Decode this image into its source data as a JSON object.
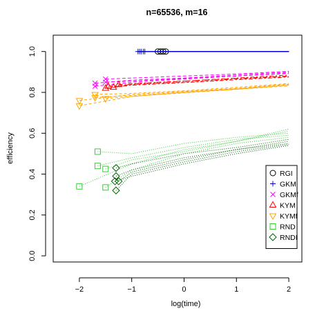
{
  "chart_data": {
    "type": "line",
    "title": "n=65536, m=16",
    "xlabel": "log(time)",
    "ylabel": "efficiency",
    "xlim": [
      -2.5,
      2.25
    ],
    "ylim": [
      -0.03,
      1.08
    ],
    "x_ticks": [
      -2,
      -1,
      0,
      1,
      2
    ],
    "x_tick_labels": [
      "−2",
      "−1",
      "0",
      "1",
      "2"
    ],
    "y_ticks": [
      0.0,
      0.2,
      0.4,
      0.6,
      0.8,
      1.0
    ],
    "y_tick_labels": [
      "0.0",
      "0.2",
      "0.4",
      "0.6",
      "0.8",
      "1.0"
    ],
    "grid": false,
    "legend_position": "right",
    "series": [
      {
        "name": "RGI",
        "color": "#000000",
        "marker": "circle",
        "dash": "none",
        "runs": [
          [
            [
              -0.5,
              1.0
            ],
            [
              2.0,
              1.0
            ]
          ],
          [
            [
              -0.45,
              1.0
            ],
            [
              2.0,
              1.0
            ]
          ],
          [
            [
              -0.4,
              1.0
            ],
            [
              2.0,
              1.0
            ]
          ],
          [
            [
              -0.35,
              1.0
            ],
            [
              2.0,
              1.0
            ]
          ]
        ]
      },
      {
        "name": "GKM",
        "color": "#0000cc",
        "marker": "plus",
        "dash": "none",
        "runs": [
          [
            [
              -0.88,
              1.0
            ],
            [
              2.0,
              1.0
            ]
          ],
          [
            [
              -0.85,
              1.0
            ],
            [
              2.0,
              1.0
            ]
          ],
          [
            [
              -0.82,
              1.0
            ],
            [
              2.0,
              1.0
            ]
          ],
          [
            [
              -0.78,
              1.0
            ],
            [
              2.0,
              1.0
            ]
          ],
          [
            [
              -0.75,
              1.0
            ],
            [
              2.0,
              1.0
            ]
          ]
        ]
      },
      {
        "name": "GKMf",
        "color": "#ff00ff",
        "marker": "x",
        "dash": "5,3",
        "runs": [
          [
            [
              -1.7,
              0.845
            ],
            [
              -1.0,
              0.86
            ],
            [
              0.0,
              0.87
            ],
            [
              1.0,
              0.885
            ],
            [
              2.0,
              0.9
            ]
          ],
          [
            [
              -1.7,
              0.83
            ],
            [
              -1.0,
              0.85
            ],
            [
              0.0,
              0.865
            ],
            [
              1.0,
              0.88
            ],
            [
              2.0,
              0.895
            ]
          ],
          [
            [
              -1.5,
              0.865
            ],
            [
              -1.0,
              0.87
            ],
            [
              0.0,
              0.88
            ],
            [
              1.0,
              0.89
            ],
            [
              2.0,
              0.903
            ]
          ],
          [
            [
              -1.5,
              0.85
            ],
            [
              -1.0,
              0.855
            ],
            [
              0.0,
              0.868
            ],
            [
              1.0,
              0.88
            ],
            [
              2.0,
              0.892
            ]
          ]
        ]
      },
      {
        "name": "KYM",
        "color": "#ff0000",
        "marker": "triangle",
        "dash": "6,3,2,3",
        "runs": [
          [
            [
              -1.5,
              0.82
            ],
            [
              -1.0,
              0.84
            ],
            [
              0.0,
              0.855
            ],
            [
              1.0,
              0.87
            ],
            [
              2.0,
              0.885
            ]
          ],
          [
            [
              -1.45,
              0.83
            ],
            [
              -1.0,
              0.838
            ],
            [
              0.0,
              0.85
            ],
            [
              1.0,
              0.865
            ],
            [
              2.0,
              0.878
            ]
          ],
          [
            [
              -1.35,
              0.825
            ],
            [
              -1.0,
              0.835
            ],
            [
              0.0,
              0.848
            ],
            [
              1.0,
              0.862
            ],
            [
              2.0,
              0.875
            ]
          ],
          [
            [
              -1.25,
              0.838
            ],
            [
              -1.0,
              0.843
            ],
            [
              0.0,
              0.856
            ],
            [
              1.0,
              0.868
            ],
            [
              2.0,
              0.88
            ]
          ]
        ]
      },
      {
        "name": "KYMf",
        "color": "#ffa500",
        "marker": "triangle-down",
        "dash": "4,3",
        "runs": [
          [
            [
              -2.0,
              0.76
            ],
            [
              -1.0,
              0.79
            ],
            [
              0.0,
              0.805
            ],
            [
              1.0,
              0.82
            ],
            [
              2.0,
              0.84
            ]
          ],
          [
            [
              -2.0,
              0.735
            ],
            [
              -1.0,
              0.78
            ],
            [
              0.0,
              0.8
            ],
            [
              1.0,
              0.815
            ],
            [
              2.0,
              0.835
            ]
          ],
          [
            [
              -1.7,
              0.79
            ],
            [
              -1.0,
              0.795
            ],
            [
              0.0,
              0.808
            ],
            [
              1.0,
              0.825
            ],
            [
              2.0,
              0.843
            ]
          ],
          [
            [
              -1.7,
              0.775
            ],
            [
              -1.0,
              0.785
            ],
            [
              0.0,
              0.802
            ],
            [
              1.0,
              0.818
            ],
            [
              2.0,
              0.838
            ]
          ],
          [
            [
              -1.5,
              0.77
            ],
            [
              -1.0,
              0.78
            ],
            [
              0.0,
              0.798
            ],
            [
              1.0,
              0.815
            ],
            [
              2.0,
              0.832
            ]
          ]
        ]
      },
      {
        "name": "RND",
        "color": "#33cc33",
        "marker": "square",
        "dash": "1,2",
        "runs": [
          [
            [
              -2.0,
              0.34
            ],
            [
              -1.0,
              0.45
            ],
            [
              0.0,
              0.52
            ],
            [
              1.0,
              0.56
            ],
            [
              2.0,
              0.61
            ]
          ],
          [
            [
              -1.65,
              0.51
            ],
            [
              -1.0,
              0.5
            ],
            [
              0.0,
              0.55
            ],
            [
              1.0,
              0.58
            ],
            [
              2.0,
              0.6
            ]
          ],
          [
            [
              -1.65,
              0.44
            ],
            [
              -1.0,
              0.48
            ],
            [
              0.0,
              0.53
            ],
            [
              1.0,
              0.57
            ],
            [
              2.0,
              0.59
            ]
          ],
          [
            [
              -1.5,
              0.335
            ],
            [
              -1.0,
              0.42
            ],
            [
              0.0,
              0.5
            ],
            [
              1.0,
              0.55
            ],
            [
              2.0,
              0.58
            ]
          ],
          [
            [
              -1.5,
              0.425
            ],
            [
              -1.0,
              0.47
            ],
            [
              0.0,
              0.51
            ],
            [
              1.0,
              0.56
            ],
            [
              2.0,
              0.62
            ]
          ]
        ]
      },
      {
        "name": "RNDI",
        "color": "#006400",
        "marker": "diamond",
        "dash": "1,2",
        "runs": [
          [
            [
              -1.3,
              0.43
            ],
            [
              -1.0,
              0.45
            ],
            [
              0.0,
              0.5
            ],
            [
              1.0,
              0.53
            ],
            [
              2.0,
              0.57
            ]
          ],
          [
            [
              -1.3,
              0.39
            ],
            [
              -1.0,
              0.42
            ],
            [
              0.0,
              0.48
            ],
            [
              1.0,
              0.52
            ],
            [
              2.0,
              0.55
            ]
          ],
          [
            [
              -1.3,
              0.32
            ],
            [
              -1.0,
              0.4
            ],
            [
              0.0,
              0.46
            ],
            [
              1.0,
              0.51
            ],
            [
              2.0,
              0.545
            ]
          ],
          [
            [
              -1.25,
              0.365
            ],
            [
              -1.0,
              0.41
            ],
            [
              0.0,
              0.47
            ],
            [
              1.0,
              0.52
            ],
            [
              2.0,
              0.56
            ]
          ],
          [
            [
              -1.32,
              0.365
            ],
            [
              -1.0,
              0.39
            ],
            [
              0.0,
              0.45
            ],
            [
              1.0,
              0.5
            ],
            [
              2.0,
              0.54
            ]
          ]
        ]
      }
    ]
  }
}
